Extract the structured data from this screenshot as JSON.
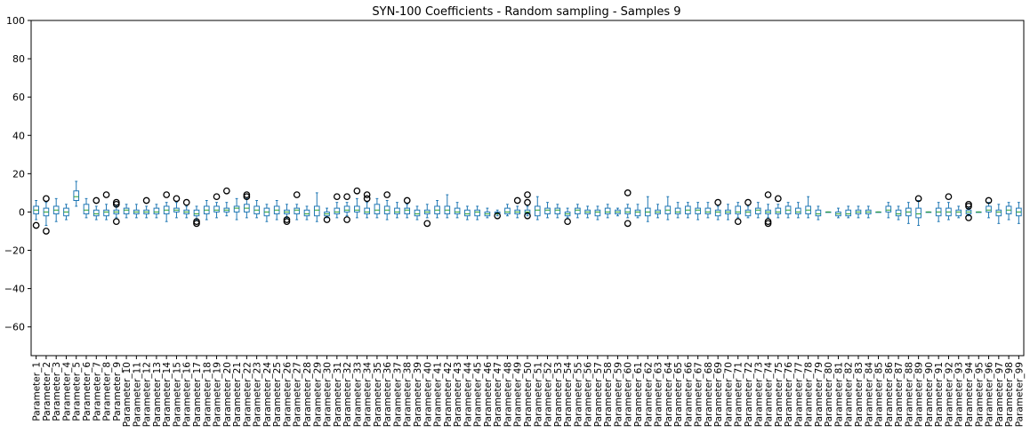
{
  "chart_data": {
    "type": "box",
    "title": "SYN-100 Coefficients - Random sampling - Samples 9",
    "xlabel": "",
    "ylabel": "",
    "ylim": [
      -75,
      100
    ],
    "yticks": [
      -60,
      -40,
      -20,
      0,
      20,
      40,
      60,
      80,
      100
    ],
    "grid": false,
    "colors": {
      "box": "#1f77b4",
      "median": "#2ca02c",
      "whisker": "#1f77b4",
      "flier": "#000000"
    },
    "categories": [
      "Parameter_1",
      "Parameter_2",
      "Parameter_3",
      "Parameter_4",
      "Parameter_5",
      "Parameter_6",
      "Parameter_7",
      "Parameter_8",
      "Parameter_9",
      "Parameter_10",
      "Parameter_11",
      "Parameter_12",
      "Parameter_13",
      "Parameter_14",
      "Parameter_15",
      "Parameter_16",
      "Parameter_17",
      "Parameter_18",
      "Parameter_19",
      "Parameter_20",
      "Parameter_21",
      "Parameter_22",
      "Parameter_23",
      "Parameter_24",
      "Parameter_25",
      "Parameter_26",
      "Parameter_27",
      "Parameter_28",
      "Parameter_29",
      "Parameter_30",
      "Parameter_31",
      "Parameter_32",
      "Parameter_33",
      "Parameter_34",
      "Parameter_35",
      "Parameter_36",
      "Parameter_37",
      "Parameter_38",
      "Parameter_39",
      "Parameter_40",
      "Parameter_41",
      "Parameter_42",
      "Parameter_43",
      "Parameter_44",
      "Parameter_45",
      "Parameter_46",
      "Parameter_47",
      "Parameter_48",
      "Parameter_49",
      "Parameter_50",
      "Parameter_51",
      "Parameter_52",
      "Parameter_53",
      "Parameter_54",
      "Parameter_55",
      "Parameter_56",
      "Parameter_57",
      "Parameter_58",
      "Parameter_59",
      "Parameter_60",
      "Parameter_61",
      "Parameter_62",
      "Parameter_63",
      "Parameter_64",
      "Parameter_65",
      "Parameter_66",
      "Parameter_67",
      "Parameter_68",
      "Parameter_69",
      "Parameter_70",
      "Parameter_71",
      "Parameter_72",
      "Parameter_73",
      "Parameter_74",
      "Parameter_75",
      "Parameter_76",
      "Parameter_77",
      "Parameter_78",
      "Parameter_79",
      "Parameter_80",
      "Parameter_81",
      "Parameter_82",
      "Parameter_83",
      "Parameter_84",
      "Parameter_85",
      "Parameter_86",
      "Parameter_87",
      "Parameter_88",
      "Parameter_89",
      "Parameter_90",
      "Parameter_91",
      "Parameter_92",
      "Parameter_93",
      "Parameter_94",
      "Parameter_95",
      "Parameter_96",
      "Parameter_97",
      "Parameter_98",
      "Parameter_99"
    ],
    "boxes": [
      {
        "wlo": -4,
        "q1": -1,
        "med": 1,
        "q3": 3,
        "whi": 6,
        "fliers": [
          -7
        ]
      },
      {
        "wlo": -7,
        "q1": -2,
        "med": 0,
        "q3": 2,
        "whi": 5,
        "fliers": [
          7,
          -10
        ]
      },
      {
        "wlo": -5,
        "q1": -1,
        "med": 1,
        "q3": 3,
        "whi": 7,
        "fliers": []
      },
      {
        "wlo": -4,
        "q1": -2,
        "med": 0,
        "q3": 2,
        "whi": 4,
        "fliers": []
      },
      {
        "wlo": 3,
        "q1": 6,
        "med": 8,
        "q3": 11,
        "whi": 16,
        "fliers": []
      },
      {
        "wlo": -3,
        "q1": -1,
        "med": 1,
        "q3": 4,
        "whi": 7,
        "fliers": []
      },
      {
        "wlo": -4,
        "q1": -2,
        "med": -1,
        "q3": 1,
        "whi": 3,
        "fliers": [
          6
        ]
      },
      {
        "wlo": -4,
        "q1": -2,
        "med": 0,
        "q3": 1,
        "whi": 4,
        "fliers": [
          9
        ]
      },
      {
        "wlo": -3,
        "q1": -1,
        "med": 0,
        "q3": 1,
        "whi": 3,
        "fliers": [
          5,
          4,
          -5
        ]
      },
      {
        "wlo": -3,
        "q1": -1,
        "med": 1,
        "q3": 2,
        "whi": 4,
        "fliers": []
      },
      {
        "wlo": -3,
        "q1": -1,
        "med": 0,
        "q3": 1,
        "whi": 4,
        "fliers": []
      },
      {
        "wlo": -3,
        "q1": -1,
        "med": 0,
        "q3": 1,
        "whi": 3,
        "fliers": [
          6
        ]
      },
      {
        "wlo": -3,
        "q1": -1,
        "med": 0,
        "q3": 2,
        "whi": 4,
        "fliers": []
      },
      {
        "wlo": -5,
        "q1": -1,
        "med": 1,
        "q3": 3,
        "whi": 5,
        "fliers": [
          9
        ]
      },
      {
        "wlo": -3,
        "q1": 0,
        "med": 1,
        "q3": 2,
        "whi": 5,
        "fliers": [
          7
        ]
      },
      {
        "wlo": -3,
        "q1": -1,
        "med": 0,
        "q3": 1,
        "whi": 3,
        "fliers": [
          5
        ]
      },
      {
        "wlo": -4,
        "q1": -2,
        "med": -1,
        "q3": 1,
        "whi": 3,
        "fliers": [
          -5,
          -6
        ]
      },
      {
        "wlo": -4,
        "q1": -1,
        "med": 1,
        "q3": 3,
        "whi": 6,
        "fliers": []
      },
      {
        "wlo": -3,
        "q1": 0,
        "med": 1,
        "q3": 3,
        "whi": 5,
        "fliers": [
          8
        ]
      },
      {
        "wlo": -2,
        "q1": 0,
        "med": 1,
        "q3": 2,
        "whi": 5,
        "fliers": [
          11
        ]
      },
      {
        "wlo": -4,
        "q1": 0,
        "med": 2,
        "q3": 3,
        "whi": 7,
        "fliers": []
      },
      {
        "wlo": -3,
        "q1": 0,
        "med": 2,
        "q3": 4,
        "whi": 7,
        "fliers": [
          9,
          8
        ]
      },
      {
        "wlo": -3,
        "q1": -1,
        "med": 1,
        "q3": 3,
        "whi": 6,
        "fliers": []
      },
      {
        "wlo": -5,
        "q1": -2,
        "med": 0,
        "q3": 2,
        "whi": 4,
        "fliers": []
      },
      {
        "wlo": -4,
        "q1": -1,
        "med": 1,
        "q3": 3,
        "whi": 6,
        "fliers": []
      },
      {
        "wlo": -3,
        "q1": -1,
        "med": 0,
        "q3": 1,
        "whi": 4,
        "fliers": [
          -5,
          -4
        ]
      },
      {
        "wlo": -4,
        "q1": -1,
        "med": 1,
        "q3": 2,
        "whi": 4,
        "fliers": [
          9
        ]
      },
      {
        "wlo": -4,
        "q1": -2,
        "med": -1,
        "q3": 1,
        "whi": 3,
        "fliers": []
      },
      {
        "wlo": -5,
        "q1": -2,
        "med": 1,
        "q3": 3,
        "whi": 10,
        "fliers": []
      },
      {
        "wlo": -3,
        "q1": -2,
        "med": -1,
        "q3": 0,
        "whi": 2,
        "fliers": [
          -4
        ]
      },
      {
        "wlo": -3,
        "q1": -1,
        "med": 0,
        "q3": 2,
        "whi": 5,
        "fliers": [
          8
        ]
      },
      {
        "wlo": -2,
        "q1": 0,
        "med": 1,
        "q3": 3,
        "whi": 5,
        "fliers": [
          8,
          -4
        ]
      },
      {
        "wlo": -3,
        "q1": 0,
        "med": 1,
        "q3": 3,
        "whi": 7,
        "fliers": [
          11
        ]
      },
      {
        "wlo": -3,
        "q1": -1,
        "med": 0,
        "q3": 2,
        "whi": 5,
        "fliers": [
          9,
          7
        ]
      },
      {
        "wlo": -3,
        "q1": -1,
        "med": 1,
        "q3": 4,
        "whi": 7,
        "fliers": []
      },
      {
        "wlo": -4,
        "q1": -1,
        "med": 1,
        "q3": 3,
        "whi": 6,
        "fliers": [
          9
        ]
      },
      {
        "wlo": -3,
        "q1": -1,
        "med": 0,
        "q3": 2,
        "whi": 5,
        "fliers": []
      },
      {
        "wlo": -3,
        "q1": -1,
        "med": 1,
        "q3": 2,
        "whi": 4,
        "fliers": [
          6
        ]
      },
      {
        "wlo": -4,
        "q1": -2,
        "med": -1,
        "q3": 1,
        "whi": 3,
        "fliers": []
      },
      {
        "wlo": -3,
        "q1": -1,
        "med": 0,
        "q3": 1,
        "whi": 4,
        "fliers": [
          -6
        ]
      },
      {
        "wlo": -3,
        "q1": -1,
        "med": 1,
        "q3": 3,
        "whi": 6,
        "fliers": []
      },
      {
        "wlo": -3,
        "q1": -1,
        "med": 1,
        "q3": 3,
        "whi": 9,
        "fliers": []
      },
      {
        "wlo": -3,
        "q1": -1,
        "med": 0,
        "q3": 2,
        "whi": 5,
        "fliers": []
      },
      {
        "wlo": -4,
        "q1": -2,
        "med": -1,
        "q3": 1,
        "whi": 3,
        "fliers": []
      },
      {
        "wlo": -4,
        "q1": -2,
        "med": 0,
        "q3": 1,
        "whi": 3,
        "fliers": []
      },
      {
        "wlo": -3,
        "q1": -2,
        "med": -1,
        "q3": 0,
        "whi": 2,
        "fliers": []
      },
      {
        "wlo": -2,
        "q1": -1,
        "med": -1,
        "q3": 0,
        "whi": 1,
        "fliers": [
          -2
        ]
      },
      {
        "wlo": -2,
        "q1": -1,
        "med": 0,
        "q3": 2,
        "whi": 4,
        "fliers": []
      },
      {
        "wlo": -3,
        "q1": -1,
        "med": 0,
        "q3": 1,
        "whi": 3,
        "fliers": [
          6
        ]
      },
      {
        "wlo": -2,
        "q1": -1,
        "med": 0,
        "q3": 1,
        "whi": 3,
        "fliers": [
          9,
          5,
          -2
        ]
      },
      {
        "wlo": -4,
        "q1": -2,
        "med": 1,
        "q3": 3,
        "whi": 8,
        "fliers": []
      },
      {
        "wlo": -3,
        "q1": -1,
        "med": 1,
        "q3": 2,
        "whi": 5,
        "fliers": []
      },
      {
        "wlo": -3,
        "q1": -1,
        "med": 1,
        "q3": 2,
        "whi": 4,
        "fliers": []
      },
      {
        "wlo": -3,
        "q1": -2,
        "med": -1,
        "q3": 0,
        "whi": 2,
        "fliers": [
          -5
        ]
      },
      {
        "wlo": -3,
        "q1": -1,
        "med": 1,
        "q3": 2,
        "whi": 4,
        "fliers": []
      },
      {
        "wlo": -3,
        "q1": -1,
        "med": 0,
        "q3": 1,
        "whi": 3,
        "fliers": []
      },
      {
        "wlo": -4,
        "q1": -2,
        "med": 0,
        "q3": 1,
        "whi": 3,
        "fliers": []
      },
      {
        "wlo": -3,
        "q1": -1,
        "med": 0,
        "q3": 2,
        "whi": 4,
        "fliers": []
      },
      {
        "wlo": -2,
        "q1": -1,
        "med": 0,
        "q3": 1,
        "whi": 2,
        "fliers": []
      },
      {
        "wlo": -3,
        "q1": -1,
        "med": 0,
        "q3": 2,
        "whi": 4,
        "fliers": [
          10,
          -6
        ]
      },
      {
        "wlo": -3,
        "q1": -2,
        "med": 0,
        "q3": 1,
        "whi": 4,
        "fliers": []
      },
      {
        "wlo": -5,
        "q1": -2,
        "med": 0,
        "q3": 2,
        "whi": 8,
        "fliers": []
      },
      {
        "wlo": -3,
        "q1": -1,
        "med": 0,
        "q3": 1,
        "whi": 4,
        "fliers": []
      },
      {
        "wlo": -4,
        "q1": -1,
        "med": 1,
        "q3": 3,
        "whi": 8,
        "fliers": []
      },
      {
        "wlo": -3,
        "q1": -1,
        "med": 0,
        "q3": 2,
        "whi": 5,
        "fliers": []
      },
      {
        "wlo": -3,
        "q1": -1,
        "med": 1,
        "q3": 3,
        "whi": 5,
        "fliers": []
      },
      {
        "wlo": -4,
        "q1": -1,
        "med": 1,
        "q3": 2,
        "whi": 5,
        "fliers": []
      },
      {
        "wlo": -3,
        "q1": -1,
        "med": 0,
        "q3": 2,
        "whi": 5,
        "fliers": []
      },
      {
        "wlo": -4,
        "q1": -2,
        "med": 0,
        "q3": 1,
        "whi": 3,
        "fliers": [
          5
        ]
      },
      {
        "wlo": -4,
        "q1": -1,
        "med": 0,
        "q3": 1,
        "whi": 4,
        "fliers": []
      },
      {
        "wlo": -3,
        "q1": -1,
        "med": 0,
        "q3": 3,
        "whi": 5,
        "fliers": [
          -5
        ]
      },
      {
        "wlo": -3,
        "q1": -2,
        "med": 0,
        "q3": 1,
        "whi": 3,
        "fliers": [
          5
        ]
      },
      {
        "wlo": -3,
        "q1": -1,
        "med": 1,
        "q3": 2,
        "whi": 5,
        "fliers": []
      },
      {
        "wlo": -3,
        "q1": -1,
        "med": 0,
        "q3": 1,
        "whi": 4,
        "fliers": [
          9,
          -5,
          -6
        ]
      },
      {
        "wlo": -3,
        "q1": -1,
        "med": 0,
        "q3": 2,
        "whi": 4,
        "fliers": [
          7
        ]
      },
      {
        "wlo": -3,
        "q1": -1,
        "med": 1,
        "q3": 3,
        "whi": 5,
        "fliers": []
      },
      {
        "wlo": -3,
        "q1": -1,
        "med": 0,
        "q3": 2,
        "whi": 5,
        "fliers": []
      },
      {
        "wlo": -3,
        "q1": -1,
        "med": 1,
        "q3": 3,
        "whi": 8,
        "fliers": []
      },
      {
        "wlo": -4,
        "q1": -2,
        "med": -1,
        "q3": 1,
        "whi": 3,
        "fliers": []
      },
      {
        "wlo": 0,
        "q1": 0,
        "med": 0,
        "q3": 0,
        "whi": 0,
        "fliers": []
      },
      {
        "wlo": -3,
        "q1": -2,
        "med": -1,
        "q3": 0,
        "whi": 2,
        "fliers": []
      },
      {
        "wlo": -3,
        "q1": -2,
        "med": -1,
        "q3": 1,
        "whi": 3,
        "fliers": []
      },
      {
        "wlo": -3,
        "q1": -1,
        "med": 0,
        "q3": 1,
        "whi": 3,
        "fliers": []
      },
      {
        "wlo": -3,
        "q1": -1,
        "med": 0,
        "q3": 1,
        "whi": 3,
        "fliers": []
      },
      {
        "wlo": 0,
        "q1": 0,
        "med": 0,
        "q3": 0,
        "whi": 0,
        "fliers": []
      },
      {
        "wlo": -3,
        "q1": 0,
        "med": 1,
        "q3": 3,
        "whi": 5,
        "fliers": []
      },
      {
        "wlo": -4,
        "q1": -2,
        "med": -1,
        "q3": 1,
        "whi": 3,
        "fliers": []
      },
      {
        "wlo": -6,
        "q1": -2,
        "med": 0,
        "q3": 2,
        "whi": 5,
        "fliers": []
      },
      {
        "wlo": -7,
        "q1": -3,
        "med": -1,
        "q3": 2,
        "whi": 6,
        "fliers": [
          7
        ]
      },
      {
        "wlo": 0,
        "q1": 0,
        "med": 0,
        "q3": 0,
        "whi": 0,
        "fliers": []
      },
      {
        "wlo": -5,
        "q1": -2,
        "med": 0,
        "q3": 2,
        "whi": 5,
        "fliers": []
      },
      {
        "wlo": -4,
        "q1": -2,
        "med": 0,
        "q3": 2,
        "whi": 5,
        "fliers": [
          8
        ]
      },
      {
        "wlo": -3,
        "q1": -2,
        "med": 0,
        "q3": 1,
        "whi": 3,
        "fliers": []
      },
      {
        "wlo": -2,
        "q1": -1,
        "med": 0,
        "q3": 1,
        "whi": 2,
        "fliers": [
          4,
          3,
          -3
        ]
      },
      {
        "wlo": 0,
        "q1": 0,
        "med": 0,
        "q3": 0,
        "whi": 0,
        "fliers": []
      },
      {
        "wlo": -3,
        "q1": 0,
        "med": 1,
        "q3": 3,
        "whi": 5,
        "fliers": [
          6
        ]
      },
      {
        "wlo": -6,
        "q1": -2,
        "med": 0,
        "q3": 1,
        "whi": 4,
        "fliers": []
      },
      {
        "wlo": -4,
        "q1": -1,
        "med": 1,
        "q3": 3,
        "whi": 5,
        "fliers": []
      },
      {
        "wlo": -6,
        "q1": -2,
        "med": 0,
        "q3": 2,
        "whi": 5,
        "fliers": []
      }
    ]
  }
}
